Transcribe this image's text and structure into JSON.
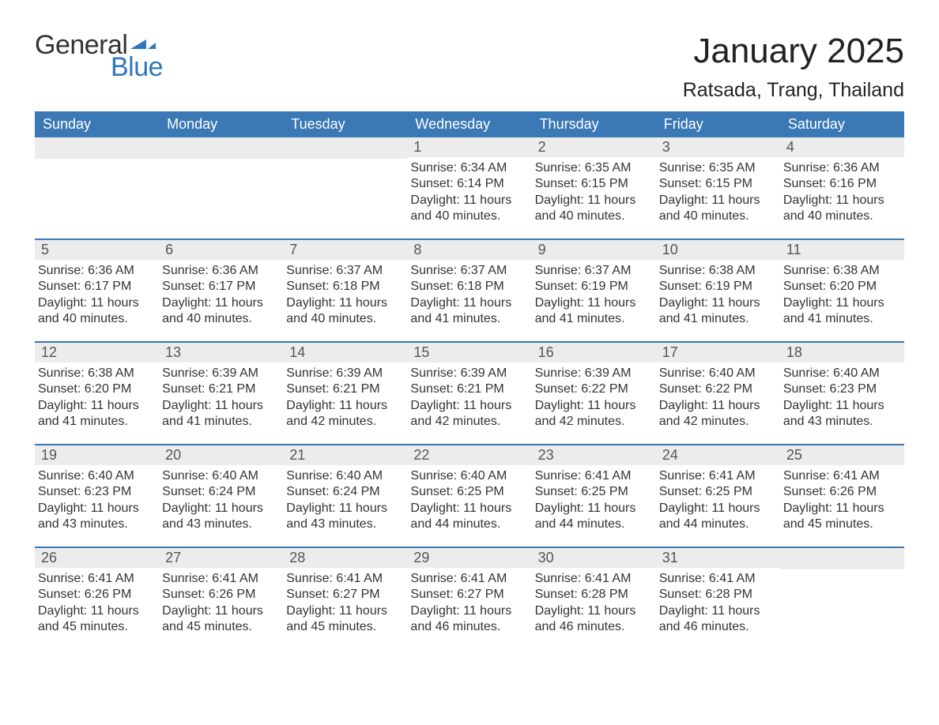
{
  "logo": {
    "word1": "General",
    "word2": "Blue",
    "text_color": "#333333",
    "accent_color": "#2f77bc"
  },
  "header": {
    "month_title": "January 2025",
    "location": "Ratsada, Trang, Thailand"
  },
  "colors": {
    "header_bar": "#3a78b6",
    "header_text": "#ffffff",
    "daynum_bg": "#ececec",
    "daynum_text": "#555555",
    "body_text": "#333333",
    "week_divider": "#3a78b6",
    "page_bg": "#ffffff"
  },
  "typography": {
    "month_title_pt": 44,
    "location_pt": 25,
    "weekday_pt": 18,
    "daynum_pt": 18,
    "body_pt": 16,
    "font_family": "Arial"
  },
  "weekdays": [
    "Sunday",
    "Monday",
    "Tuesday",
    "Wednesday",
    "Thursday",
    "Friday",
    "Saturday"
  ],
  "weeks": [
    [
      null,
      null,
      null,
      {
        "n": "1",
        "sunrise": "6:34 AM",
        "sunset": "6:14 PM",
        "daylight": "11 hours and 40 minutes."
      },
      {
        "n": "2",
        "sunrise": "6:35 AM",
        "sunset": "6:15 PM",
        "daylight": "11 hours and 40 minutes."
      },
      {
        "n": "3",
        "sunrise": "6:35 AM",
        "sunset": "6:15 PM",
        "daylight": "11 hours and 40 minutes."
      },
      {
        "n": "4",
        "sunrise": "6:36 AM",
        "sunset": "6:16 PM",
        "daylight": "11 hours and 40 minutes."
      }
    ],
    [
      {
        "n": "5",
        "sunrise": "6:36 AM",
        "sunset": "6:17 PM",
        "daylight": "11 hours and 40 minutes."
      },
      {
        "n": "6",
        "sunrise": "6:36 AM",
        "sunset": "6:17 PM",
        "daylight": "11 hours and 40 minutes."
      },
      {
        "n": "7",
        "sunrise": "6:37 AM",
        "sunset": "6:18 PM",
        "daylight": "11 hours and 40 minutes."
      },
      {
        "n": "8",
        "sunrise": "6:37 AM",
        "sunset": "6:18 PM",
        "daylight": "11 hours and 41 minutes."
      },
      {
        "n": "9",
        "sunrise": "6:37 AM",
        "sunset": "6:19 PM",
        "daylight": "11 hours and 41 minutes."
      },
      {
        "n": "10",
        "sunrise": "6:38 AM",
        "sunset": "6:19 PM",
        "daylight": "11 hours and 41 minutes."
      },
      {
        "n": "11",
        "sunrise": "6:38 AM",
        "sunset": "6:20 PM",
        "daylight": "11 hours and 41 minutes."
      }
    ],
    [
      {
        "n": "12",
        "sunrise": "6:38 AM",
        "sunset": "6:20 PM",
        "daylight": "11 hours and 41 minutes."
      },
      {
        "n": "13",
        "sunrise": "6:39 AM",
        "sunset": "6:21 PM",
        "daylight": "11 hours and 41 minutes."
      },
      {
        "n": "14",
        "sunrise": "6:39 AM",
        "sunset": "6:21 PM",
        "daylight": "11 hours and 42 minutes."
      },
      {
        "n": "15",
        "sunrise": "6:39 AM",
        "sunset": "6:21 PM",
        "daylight": "11 hours and 42 minutes."
      },
      {
        "n": "16",
        "sunrise": "6:39 AM",
        "sunset": "6:22 PM",
        "daylight": "11 hours and 42 minutes."
      },
      {
        "n": "17",
        "sunrise": "6:40 AM",
        "sunset": "6:22 PM",
        "daylight": "11 hours and 42 minutes."
      },
      {
        "n": "18",
        "sunrise": "6:40 AM",
        "sunset": "6:23 PM",
        "daylight": "11 hours and 43 minutes."
      }
    ],
    [
      {
        "n": "19",
        "sunrise": "6:40 AM",
        "sunset": "6:23 PM",
        "daylight": "11 hours and 43 minutes."
      },
      {
        "n": "20",
        "sunrise": "6:40 AM",
        "sunset": "6:24 PM",
        "daylight": "11 hours and 43 minutes."
      },
      {
        "n": "21",
        "sunrise": "6:40 AM",
        "sunset": "6:24 PM",
        "daylight": "11 hours and 43 minutes."
      },
      {
        "n": "22",
        "sunrise": "6:40 AM",
        "sunset": "6:25 PM",
        "daylight": "11 hours and 44 minutes."
      },
      {
        "n": "23",
        "sunrise": "6:41 AM",
        "sunset": "6:25 PM",
        "daylight": "11 hours and 44 minutes."
      },
      {
        "n": "24",
        "sunrise": "6:41 AM",
        "sunset": "6:25 PM",
        "daylight": "11 hours and 44 minutes."
      },
      {
        "n": "25",
        "sunrise": "6:41 AM",
        "sunset": "6:26 PM",
        "daylight": "11 hours and 45 minutes."
      }
    ],
    [
      {
        "n": "26",
        "sunrise": "6:41 AM",
        "sunset": "6:26 PM",
        "daylight": "11 hours and 45 minutes."
      },
      {
        "n": "27",
        "sunrise": "6:41 AM",
        "sunset": "6:26 PM",
        "daylight": "11 hours and 45 minutes."
      },
      {
        "n": "28",
        "sunrise": "6:41 AM",
        "sunset": "6:27 PM",
        "daylight": "11 hours and 45 minutes."
      },
      {
        "n": "29",
        "sunrise": "6:41 AM",
        "sunset": "6:27 PM",
        "daylight": "11 hours and 46 minutes."
      },
      {
        "n": "30",
        "sunrise": "6:41 AM",
        "sunset": "6:28 PM",
        "daylight": "11 hours and 46 minutes."
      },
      {
        "n": "31",
        "sunrise": "6:41 AM",
        "sunset": "6:28 PM",
        "daylight": "11 hours and 46 minutes."
      },
      null
    ]
  ],
  "labels": {
    "sunrise": "Sunrise:",
    "sunset": "Sunset:",
    "daylight": "Daylight:"
  }
}
